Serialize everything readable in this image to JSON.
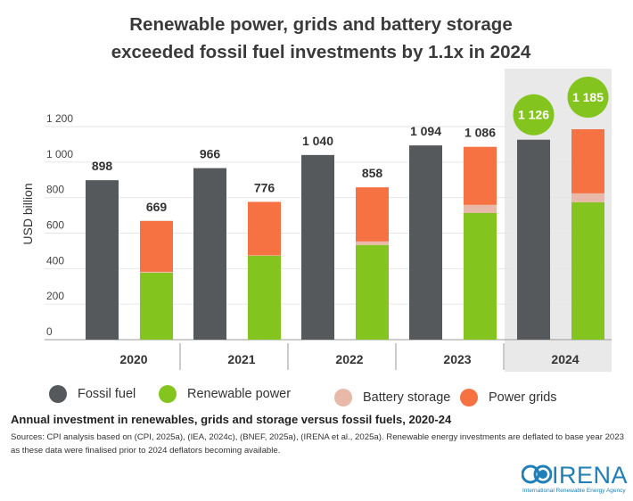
{
  "chart_data": {
    "type": "bar",
    "title": "Renewable power, grids and battery storage exceeded fossil fuel investments by 1.1x in 2024",
    "title_lines": [
      "Renewable power, grids and battery storage",
      "exceeded fossil fuel investments by 1.1x in 2024"
    ],
    "ylabel": "USD billion",
    "ylim": [
      0,
      1200
    ],
    "yticks": [
      "0",
      "200",
      "400",
      "600",
      "800",
      "1 000",
      "1 200"
    ],
    "ytick_values": [
      0,
      200,
      400,
      600,
      800,
      1000,
      1200
    ],
    "grid": true,
    "categories": [
      "2020",
      "2021",
      "2022",
      "2023",
      "2024"
    ],
    "highlighted_category": "2024",
    "fossil": {
      "name": "Fossil fuel",
      "values": [
        898,
        966,
        1040,
        1094,
        1126
      ],
      "labels": [
        "898",
        "966",
        "1 040",
        "1 094",
        "1 126"
      ]
    },
    "stack_totals": {
      "values": [
        669,
        776,
        858,
        1086,
        1185
      ],
      "labels": [
        "669",
        "776",
        "858",
        "1 086",
        "1 185"
      ]
    },
    "stack_series": [
      {
        "name": "Renewable power",
        "values": [
          377,
          472,
          533,
          713,
          774
        ]
      },
      {
        "name": "Battery storage",
        "values": [
          5,
          3,
          20,
          46,
          50
        ]
      },
      {
        "name": "Power grids",
        "values": [
          287,
          301,
          305,
          327,
          361
        ]
      }
    ],
    "legend": [
      "Fossil fuel",
      "Renewable power",
      "Battery storage",
      "Power grids"
    ],
    "legend_placement": "bottom",
    "colors": {
      "fossil": "#55595c",
      "renewable": "#84c41f",
      "storage": "#e8b9a8",
      "grids": "#f77243",
      "highlight_bg": "#e9e9e9",
      "bubble": "#84c41f"
    }
  },
  "caption": "Annual investment in renewables, grids and storage versus fossil fuels, 2020-24",
  "sources": "Sources: CPI analysis based on (CPI, 2025a), (IEA, 2024c), (BNEF, 2025a), (IRENA et al., 2025a). Renewable energy investments are deflated to base year 2023 as these data were finalised prior to 2024 deflators becoming available.",
  "logo": {
    "name": "IRENA",
    "subtitle": "International Renewable Energy Agency"
  }
}
